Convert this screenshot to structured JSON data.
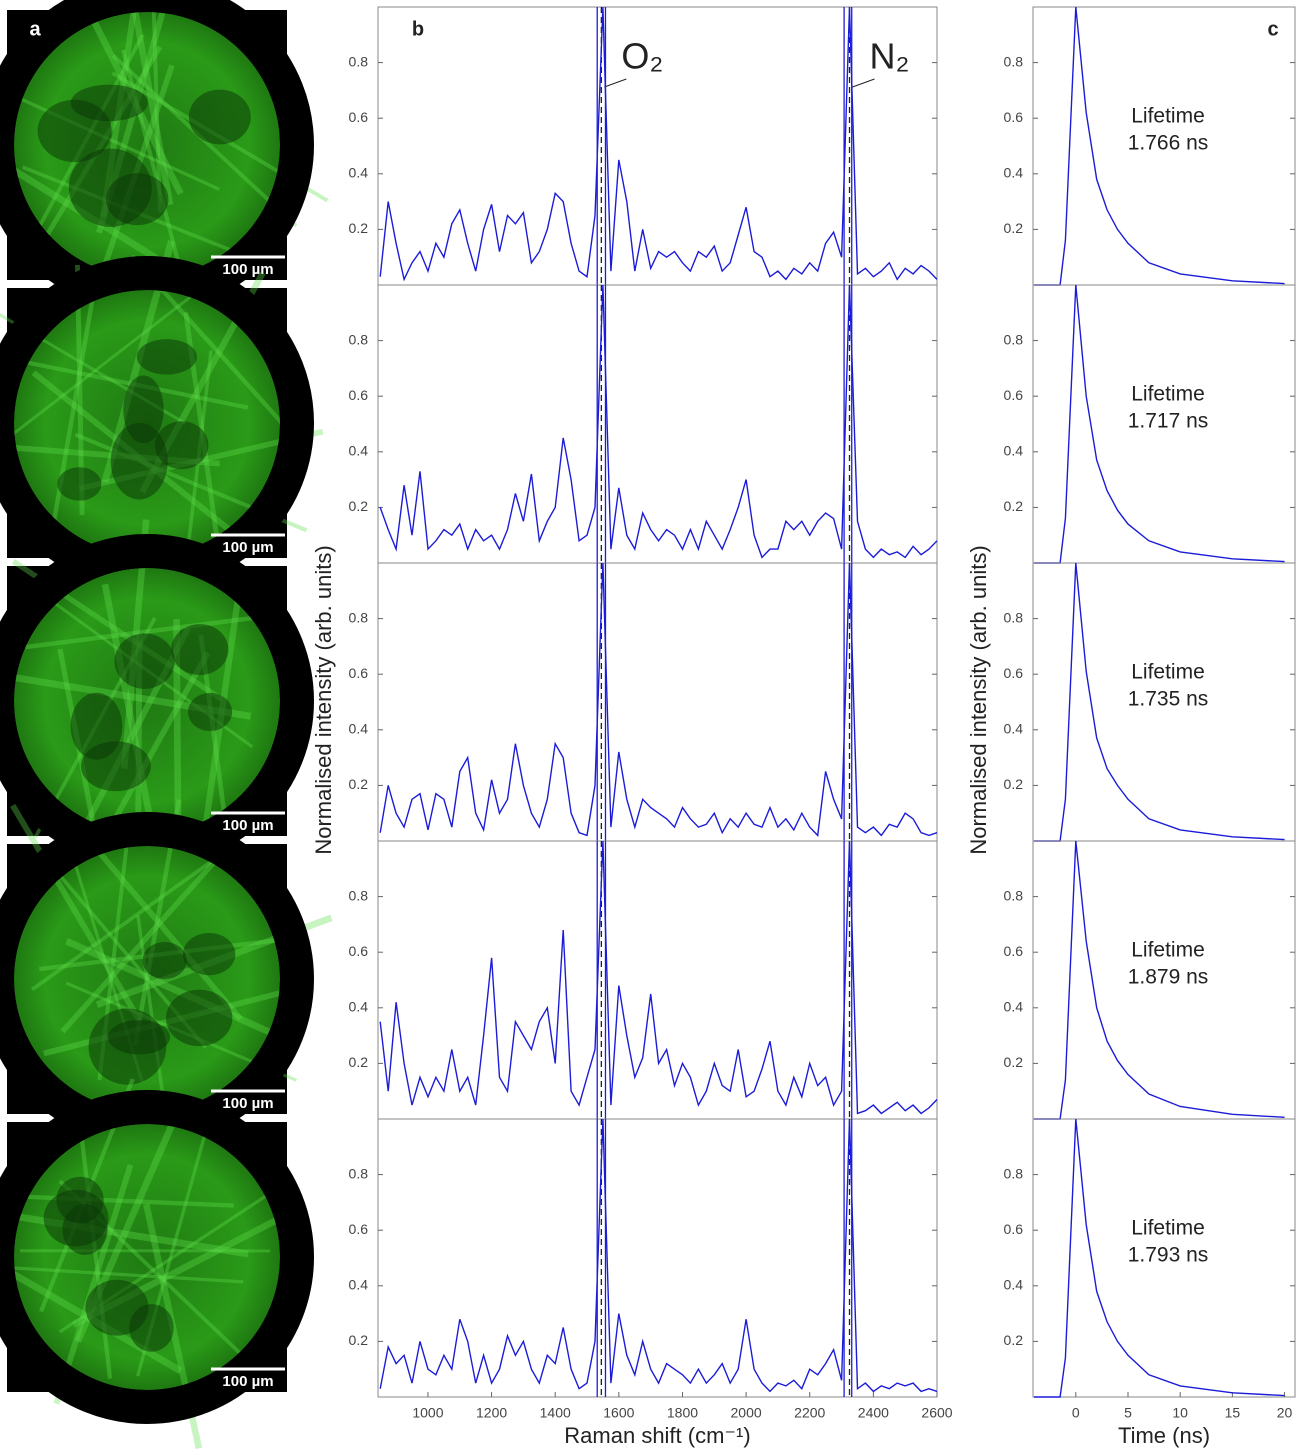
{
  "panel_a": {
    "label": "a",
    "images": [
      {
        "scale_bar": "100 µm"
      },
      {
        "scale_bar": "100 µm"
      },
      {
        "scale_bar": "100 µm"
      },
      {
        "scale_bar": "100 µm"
      },
      {
        "scale_bar": "100 µm"
      }
    ]
  },
  "chart_data": [
    {
      "type": "line",
      "panel_label": "b",
      "ylabel": "Normalised intensity (arb. units)",
      "color": "#1c1cd8",
      "bands": [
        {
          "label": "O₂",
          "center": 1545,
          "edges": [
            1532,
            1558
          ]
        },
        {
          "label": "N₂",
          "center": 2325,
          "edges": [
            2308,
            2332
          ]
        }
      ],
      "x": [
        850,
        875,
        900,
        925,
        950,
        975,
        1000,
        1025,
        1050,
        1075,
        1100,
        1125,
        1150,
        1175,
        1200,
        1225,
        1250,
        1275,
        1300,
        1325,
        1350,
        1375,
        1400,
        1425,
        1450,
        1475,
        1500,
        1525,
        1550,
        1575,
        1600,
        1625,
        1650,
        1675,
        1700,
        1725,
        1750,
        1775,
        1800,
        1825,
        1850,
        1875,
        1900,
        1925,
        1950,
        1975,
        2000,
        2025,
        2050,
        2075,
        2100,
        2125,
        2150,
        2175,
        2200,
        2225,
        2250,
        2275,
        2300,
        2325,
        2350,
        2375,
        2400,
        2425,
        2450,
        2475,
        2500,
        2525,
        2550,
        2575,
        2600
      ],
      "values": [
        0.03,
        0.3,
        0.15,
        0.02,
        0.08,
        0.12,
        0.05,
        0.15,
        0.1,
        0.22,
        0.27,
        0.15,
        0.05,
        0.2,
        0.29,
        0.12,
        0.25,
        0.22,
        0.26,
        0.08,
        0.12,
        0.2,
        0.33,
        0.3,
        0.15,
        0.05,
        0.03,
        0.25,
        1,
        0.05,
        0.45,
        0.3,
        0.05,
        0.2,
        0.06,
        0.12,
        0.1,
        0.12,
        0.08,
        0.05,
        0.12,
        0.1,
        0.14,
        0.05,
        0.08,
        0.18,
        0.28,
        0.12,
        0.1,
        0.03,
        0.05,
        0.02,
        0.06,
        0.04,
        0.08,
        0.05,
        0.15,
        0.19,
        0.1,
        1,
        0.04,
        0.06,
        0.03,
        0.05,
        0.08,
        0.02,
        0.06,
        0.04,
        0.07,
        0.05,
        0.02
      ],
      "xlim": [
        843,
        2600
      ],
      "ylim": [
        0,
        1
      ],
      "yticks": [
        0.2,
        0.4,
        0.6,
        0.8
      ]
    },
    {
      "type": "line",
      "color": "#1c1cd8",
      "bands": [
        {
          "center": 1545,
          "edges": [
            1532,
            1558
          ]
        },
        {
          "center": 2325,
          "edges": [
            2308,
            2332
          ]
        }
      ],
      "x": [
        850,
        875,
        900,
        925,
        950,
        975,
        1000,
        1025,
        1050,
        1075,
        1100,
        1125,
        1150,
        1175,
        1200,
        1225,
        1250,
        1275,
        1300,
        1325,
        1350,
        1375,
        1400,
        1425,
        1450,
        1475,
        1500,
        1525,
        1550,
        1575,
        1600,
        1625,
        1650,
        1675,
        1700,
        1725,
        1750,
        1775,
        1800,
        1825,
        1850,
        1875,
        1900,
        1925,
        1950,
        1975,
        2000,
        2025,
        2050,
        2075,
        2100,
        2125,
        2150,
        2175,
        2200,
        2225,
        2250,
        2275,
        2300,
        2325,
        2350,
        2375,
        2400,
        2425,
        2450,
        2475,
        2500,
        2525,
        2550,
        2575,
        2600
      ],
      "values": [
        0.2,
        0.12,
        0.05,
        0.28,
        0.1,
        0.33,
        0.05,
        0.08,
        0.12,
        0.1,
        0.14,
        0.05,
        0.12,
        0.08,
        0.1,
        0.05,
        0.12,
        0.25,
        0.15,
        0.32,
        0.08,
        0.15,
        0.2,
        0.45,
        0.3,
        0.08,
        0.1,
        0.2,
        1,
        0.05,
        0.27,
        0.1,
        0.05,
        0.18,
        0.12,
        0.08,
        0.12,
        0.1,
        0.05,
        0.12,
        0.05,
        0.15,
        0.1,
        0.05,
        0.12,
        0.2,
        0.3,
        0.1,
        0.02,
        0.05,
        0.05,
        0.15,
        0.12,
        0.15,
        0.1,
        0.15,
        0.18,
        0.16,
        0.05,
        1,
        0.15,
        0.05,
        0.02,
        0.05,
        0.03,
        0.04,
        0.02,
        0.06,
        0.03,
        0.05,
        0.08
      ],
      "xlim": [
        843,
        2600
      ],
      "ylim": [
        0,
        1
      ],
      "yticks": [
        0.2,
        0.4,
        0.6,
        0.8
      ]
    },
    {
      "type": "line",
      "color": "#1c1cd8",
      "bands": [
        {
          "center": 1545,
          "edges": [
            1532,
            1558
          ]
        },
        {
          "center": 2325,
          "edges": [
            2308,
            2332
          ]
        }
      ],
      "x": [
        850,
        875,
        900,
        925,
        950,
        975,
        1000,
        1025,
        1050,
        1075,
        1100,
        1125,
        1150,
        1175,
        1200,
        1225,
        1250,
        1275,
        1300,
        1325,
        1350,
        1375,
        1400,
        1425,
        1450,
        1475,
        1500,
        1525,
        1550,
        1575,
        1600,
        1625,
        1650,
        1675,
        1700,
        1725,
        1750,
        1775,
        1800,
        1825,
        1850,
        1875,
        1900,
        1925,
        1950,
        1975,
        2000,
        2025,
        2050,
        2075,
        2100,
        2125,
        2150,
        2175,
        2200,
        2225,
        2250,
        2275,
        2300,
        2325,
        2350,
        2375,
        2400,
        2425,
        2450,
        2475,
        2500,
        2525,
        2550,
        2575,
        2600
      ],
      "values": [
        0.03,
        0.2,
        0.1,
        0.05,
        0.15,
        0.17,
        0.04,
        0.17,
        0.15,
        0.05,
        0.25,
        0.3,
        0.1,
        0.04,
        0.22,
        0.1,
        0.15,
        0.35,
        0.2,
        0.1,
        0.05,
        0.15,
        0.35,
        0.3,
        0.1,
        0.03,
        0.02,
        0.2,
        1,
        0.05,
        0.32,
        0.15,
        0.05,
        0.15,
        0.12,
        0.1,
        0.08,
        0.05,
        0.12,
        0.08,
        0.05,
        0.06,
        0.1,
        0.03,
        0.08,
        0.05,
        0.1,
        0.06,
        0.05,
        0.12,
        0.05,
        0.08,
        0.04,
        0.1,
        0.05,
        0.02,
        0.25,
        0.15,
        0.08,
        1,
        0.05,
        0.03,
        0.05,
        0.02,
        0.06,
        0.05,
        0.1,
        0.08,
        0.03,
        0.02,
        0.03
      ],
      "xlim": [
        843,
        2600
      ],
      "ylim": [
        0,
        1
      ],
      "yticks": [
        0.2,
        0.4,
        0.6,
        0.8
      ]
    },
    {
      "type": "line",
      "color": "#1c1cd8",
      "bands": [
        {
          "center": 1545,
          "edges": [
            1532,
            1558
          ]
        },
        {
          "center": 2325,
          "edges": [
            2308,
            2332
          ]
        }
      ],
      "x": [
        850,
        875,
        900,
        925,
        950,
        975,
        1000,
        1025,
        1050,
        1075,
        1100,
        1125,
        1150,
        1175,
        1200,
        1225,
        1250,
        1275,
        1300,
        1325,
        1350,
        1375,
        1400,
        1425,
        1450,
        1475,
        1500,
        1525,
        1550,
        1575,
        1600,
        1625,
        1650,
        1675,
        1700,
        1725,
        1750,
        1775,
        1800,
        1825,
        1850,
        1875,
        1900,
        1925,
        1950,
        1975,
        2000,
        2025,
        2050,
        2075,
        2100,
        2125,
        2150,
        2175,
        2200,
        2225,
        2250,
        2275,
        2300,
        2325,
        2350,
        2375,
        2400,
        2425,
        2450,
        2475,
        2500,
        2525,
        2550,
        2575,
        2600
      ],
      "values": [
        0.35,
        0.1,
        0.42,
        0.2,
        0.05,
        0.15,
        0.08,
        0.15,
        0.1,
        0.25,
        0.1,
        0.15,
        0.05,
        0.3,
        0.58,
        0.15,
        0.1,
        0.35,
        0.3,
        0.25,
        0.35,
        0.4,
        0.2,
        0.68,
        0.1,
        0.05,
        0.15,
        0.25,
        1,
        0.05,
        0.48,
        0.3,
        0.15,
        0.22,
        0.45,
        0.2,
        0.25,
        0.12,
        0.2,
        0.15,
        0.05,
        0.1,
        0.2,
        0.12,
        0.1,
        0.25,
        0.08,
        0.1,
        0.18,
        0.28,
        0.1,
        0.05,
        0.15,
        0.08,
        0.2,
        0.12,
        0.15,
        0.05,
        0.1,
        1,
        0.02,
        0.03,
        0.05,
        0.02,
        0.04,
        0.06,
        0.03,
        0.05,
        0.02,
        0.04,
        0.07
      ],
      "xlim": [
        843,
        2600
      ],
      "ylim": [
        0,
        1
      ],
      "yticks": [
        0.2,
        0.4,
        0.6,
        0.8
      ]
    },
    {
      "type": "line",
      "color": "#1c1cd8",
      "xlabel": "Raman shift (cm⁻¹)",
      "bands": [
        {
          "center": 1545,
          "edges": [
            1532,
            1558
          ]
        },
        {
          "center": 2325,
          "edges": [
            2308,
            2332
          ]
        }
      ],
      "x": [
        850,
        875,
        900,
        925,
        950,
        975,
        1000,
        1025,
        1050,
        1075,
        1100,
        1125,
        1150,
        1175,
        1200,
        1225,
        1250,
        1275,
        1300,
        1325,
        1350,
        1375,
        1400,
        1425,
        1450,
        1475,
        1500,
        1525,
        1550,
        1575,
        1600,
        1625,
        1650,
        1675,
        1700,
        1725,
        1750,
        1775,
        1800,
        1825,
        1850,
        1875,
        1900,
        1925,
        1950,
        1975,
        2000,
        2025,
        2050,
        2075,
        2100,
        2125,
        2150,
        2175,
        2200,
        2225,
        2250,
        2275,
        2300,
        2325,
        2350,
        2375,
        2400,
        2425,
        2450,
        2475,
        2500,
        2525,
        2550,
        2575,
        2600
      ],
      "values": [
        0.03,
        0.18,
        0.12,
        0.15,
        0.05,
        0.2,
        0.1,
        0.08,
        0.15,
        0.1,
        0.28,
        0.2,
        0.05,
        0.15,
        0.05,
        0.1,
        0.22,
        0.15,
        0.2,
        0.1,
        0.05,
        0.15,
        0.12,
        0.25,
        0.1,
        0.03,
        0.05,
        0.2,
        1,
        0.05,
        0.3,
        0.15,
        0.08,
        0.2,
        0.1,
        0.05,
        0.12,
        0.1,
        0.08,
        0.05,
        0.1,
        0.05,
        0.08,
        0.12,
        0.05,
        0.1,
        0.28,
        0.1,
        0.05,
        0.02,
        0.05,
        0.04,
        0.06,
        0.03,
        0.1,
        0.08,
        0.12,
        0.17,
        0.06,
        1,
        0.03,
        0.05,
        0.02,
        0.04,
        0.03,
        0.05,
        0.04,
        0.05,
        0.02,
        0.03,
        0.02
      ],
      "xlim": [
        843,
        2600
      ],
      "ylim": [
        0,
        1
      ],
      "yticks": [
        0.2,
        0.4,
        0.6,
        0.8
      ],
      "xticks": [
        1000,
        1200,
        1400,
        1600,
        1800,
        2000,
        2200,
        2400,
        2600
      ]
    },
    {
      "type": "line",
      "panel_label": "c",
      "ylabel": "Normalised intensity (arb. units)",
      "color": "#1c1cd8",
      "annotation": [
        "Lifetime",
        "1.766 ns"
      ],
      "x": [
        -4,
        -1.5,
        -1,
        0,
        1,
        2,
        3,
        4,
        5,
        7,
        10,
        15,
        20
      ],
      "values": [
        0,
        0,
        0.16,
        1,
        0.62,
        0.38,
        0.27,
        0.2,
        0.15,
        0.08,
        0.04,
        0.015,
        0.005
      ],
      "xlim": [
        -4.1,
        21
      ],
      "ylim": [
        0,
        1
      ],
      "yticks": [
        0.2,
        0.4,
        0.6,
        0.8
      ]
    },
    {
      "type": "line",
      "color": "#1c1cd8",
      "annotation": [
        "Lifetime",
        "1.717 ns"
      ],
      "x": [
        -4,
        -1.5,
        -1,
        0,
        1,
        2,
        3,
        4,
        5,
        7,
        10,
        15,
        20
      ],
      "values": [
        0,
        0,
        0.16,
        1,
        0.6,
        0.37,
        0.26,
        0.19,
        0.14,
        0.08,
        0.04,
        0.015,
        0.005
      ],
      "xlim": [
        -4.1,
        21
      ],
      "ylim": [
        0,
        1
      ],
      "yticks": [
        0.2,
        0.4,
        0.6,
        0.8
      ]
    },
    {
      "type": "line",
      "color": "#1c1cd8",
      "annotation": [
        "Lifetime",
        "1.735 ns"
      ],
      "x": [
        -4,
        -1.5,
        -1,
        0,
        1,
        2,
        3,
        4,
        5,
        7,
        10,
        15,
        20
      ],
      "values": [
        0,
        0,
        0.15,
        1,
        0.61,
        0.37,
        0.26,
        0.2,
        0.15,
        0.08,
        0.04,
        0.015,
        0.005
      ],
      "xlim": [
        -4.1,
        21
      ],
      "ylim": [
        0,
        1
      ],
      "yticks": [
        0.2,
        0.4,
        0.6,
        0.8
      ]
    },
    {
      "type": "line",
      "color": "#1c1cd8",
      "annotation": [
        "Lifetime",
        "1.879 ns"
      ],
      "x": [
        -4,
        -1.5,
        -1,
        0,
        1,
        2,
        3,
        4,
        5,
        7,
        10,
        15,
        20
      ],
      "values": [
        0,
        0,
        0.14,
        1,
        0.64,
        0.4,
        0.28,
        0.21,
        0.16,
        0.09,
        0.045,
        0.017,
        0.006
      ],
      "xlim": [
        -4.1,
        21
      ],
      "ylim": [
        0,
        1
      ],
      "yticks": [
        0.2,
        0.4,
        0.6,
        0.8
      ]
    },
    {
      "type": "line",
      "color": "#1c1cd8",
      "annotation": [
        "Lifetime",
        "1.793 ns"
      ],
      "xlabel": "Time (ns)",
      "x": [
        -4,
        -1.5,
        -1,
        0,
        1,
        2,
        3,
        4,
        5,
        7,
        10,
        15,
        20
      ],
      "values": [
        0,
        0,
        0.14,
        1,
        0.62,
        0.38,
        0.27,
        0.2,
        0.15,
        0.08,
        0.04,
        0.015,
        0.005
      ],
      "xlim": [
        -4.1,
        21
      ],
      "ylim": [
        0,
        1
      ],
      "yticks": [
        0.2,
        0.4,
        0.6,
        0.8
      ],
      "xticks": [
        0,
        5,
        10,
        15,
        20
      ]
    }
  ]
}
